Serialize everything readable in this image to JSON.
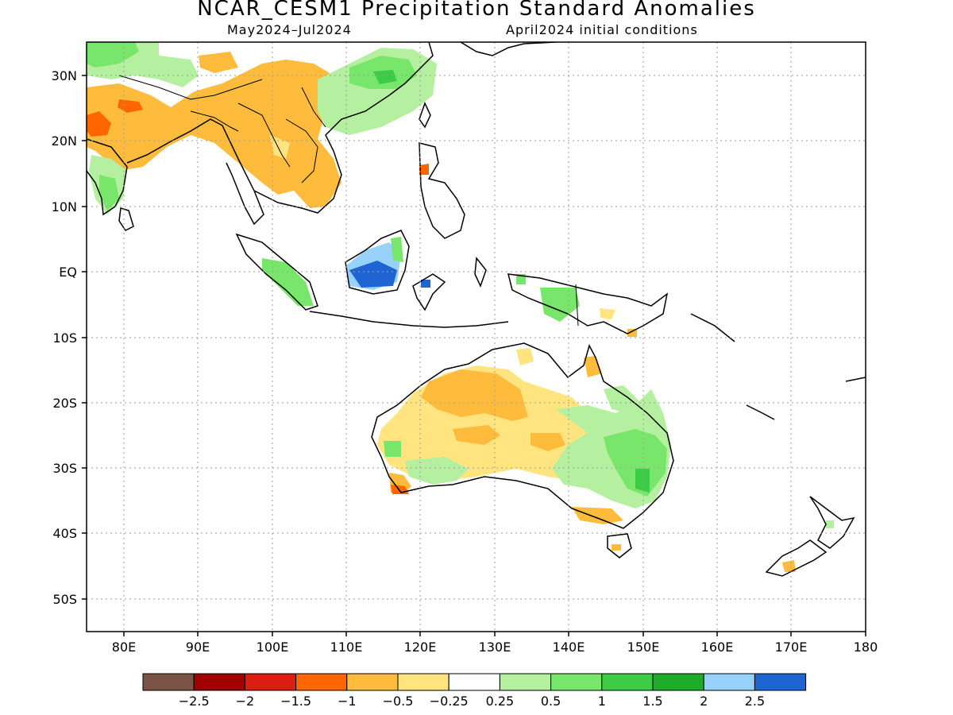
{
  "title": "NCAR_CESM1 Precipitation Standard Anomalies",
  "subtitle_left": "May2024–Jul2024",
  "subtitle_right": "April2024 initial conditions",
  "lat_labels": [
    "30N",
    "20N",
    "10N",
    "EQ",
    "10S",
    "20S",
    "30S",
    "40S",
    "50S"
  ],
  "lon_labels": [
    "80E",
    "90E",
    "100E",
    "110E",
    "120E",
    "130E",
    "140E",
    "150E",
    "160E",
    "170E",
    "180"
  ],
  "map": {
    "lon_range": [
      75,
      180
    ],
    "lat_range": [
      -55,
      35
    ],
    "grid": true
  },
  "colorbar": {
    "colors": [
      "#7a5246",
      "#a00000",
      "#dc1e12",
      "#ff6600",
      "#ffbc3c",
      "#ffe480",
      "#ffffff",
      "#b4f0a0",
      "#78e66a",
      "#3ccc46",
      "#1eaa2a",
      "#96d2fa",
      "#1e64d2"
    ],
    "labels": [
      "−2.5",
      "−2",
      "−1.5",
      "−1",
      "−0.5",
      "−0.25",
      "0.25",
      "0.5",
      "1",
      "1.5",
      "2",
      "2.5"
    ]
  }
}
